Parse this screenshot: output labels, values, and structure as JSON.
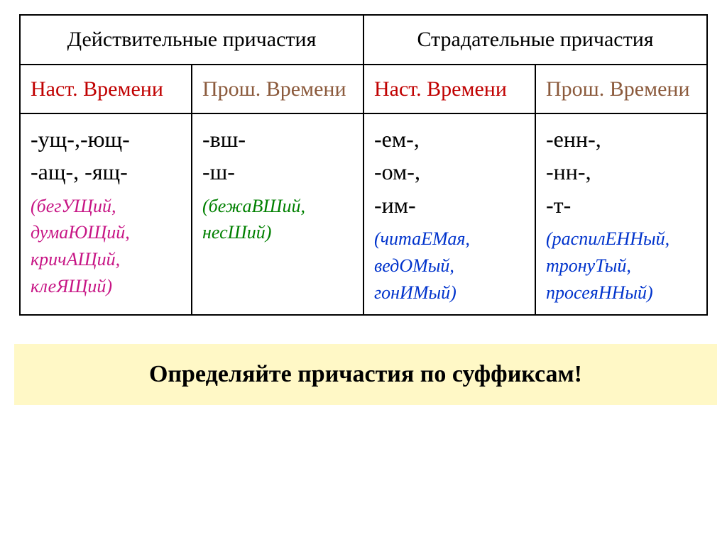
{
  "table": {
    "header_left": "Действительные причастия",
    "header_right": "Страдательные причастия",
    "tense_present": "Наст. Времени",
    "tense_past_1": "Прош. Времени",
    "tense_present_2": "Наст. Времени",
    "tense_past_2": "Прош. Времени",
    "col1": {
      "suffix1": "-ущ-,-ющ-",
      "suffix2": "-ащ-, -ящ-",
      "ex_open": "(бегУЩий,",
      "ex_l2": "думаЮЩий,",
      "ex_l3": "кричАЩий,",
      "ex_l4": "клеЯЩий)"
    },
    "col2": {
      "suffix1": "-вш-",
      "suffix2": "-ш-",
      "ex_open": "(бежаВШий,",
      "ex_l2": "несШий)"
    },
    "col3": {
      "suffix1": "-ем-,",
      "suffix2": "-ом-,",
      "suffix3": "-им-",
      "ex_open": "(читаЕМая,",
      "ex_l2": "ведОМый,",
      "ex_l3": "гонИМый)"
    },
    "col4": {
      "suffix1": "-енн-,",
      "suffix2": "-нн-,",
      "suffix3": "-т-",
      "ex_open": "(распилЕННый,",
      "ex_l2": "тронуТый,",
      "ex_l3": "просеяННый)"
    }
  },
  "banner": "Определяйте причастия по суффиксам!",
  "colors": {
    "present": "#c00000",
    "past": "#8b5a3c",
    "magenta": "#c71585",
    "green": "#008000",
    "blue": "#0033cc",
    "banner_bg": "#fff8c6",
    "border": "#000000"
  }
}
